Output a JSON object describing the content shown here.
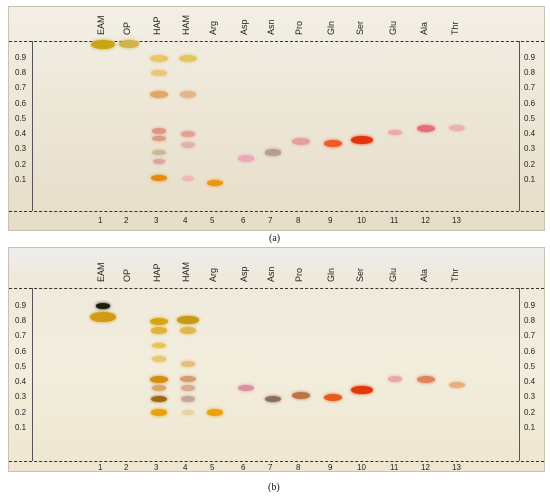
{
  "lanes": [
    {
      "abbr": "EAM",
      "num": "1"
    },
    {
      "abbr": "OP",
      "num": "2"
    },
    {
      "abbr": "HAP",
      "num": "3"
    },
    {
      "abbr": "HAM",
      "num": "4"
    },
    {
      "abbr": "Arg",
      "num": "5"
    },
    {
      "abbr": "Asp",
      "num": "6"
    },
    {
      "abbr": "Asn",
      "num": "7"
    },
    {
      "abbr": "Pro",
      "num": "8"
    },
    {
      "abbr": "Gln",
      "num": "9"
    },
    {
      "abbr": "Ser",
      "num": "10"
    },
    {
      "abbr": "Glu",
      "num": "11"
    },
    {
      "abbr": "Ala",
      "num": "12"
    },
    {
      "abbr": "Thr",
      "num": "13"
    }
  ],
  "rf_ticks": [
    "0.9",
    "0.8",
    "0.7",
    "0.6",
    "0.5",
    "0.4",
    "0.3",
    "0.2",
    "0.1"
  ],
  "captions": {
    "a": "(a)",
    "b": "(b)"
  },
  "plates": {
    "a": [
      {
        "lane": 1,
        "rf": 0.99,
        "color": "#c9a414",
        "size": 1.3
      },
      {
        "lane": 2,
        "rf": 0.99,
        "color": "#d2b24a",
        "size": 1.1
      },
      {
        "lane": 3,
        "rf": 0.9,
        "color": "#e7c768",
        "size": 1.0
      },
      {
        "lane": 3,
        "rf": 0.8,
        "color": "#e8c77a",
        "size": 0.9
      },
      {
        "lane": 3,
        "rf": 0.66,
        "color": "#e0a860",
        "size": 1.0
      },
      {
        "lane": 3,
        "rf": 0.42,
        "color": "#e1957c",
        "size": 0.8
      },
      {
        "lane": 3,
        "rf": 0.37,
        "color": "#e09a80",
        "size": 0.8
      },
      {
        "lane": 3,
        "rf": 0.28,
        "color": "#cdb89a",
        "size": 0.8
      },
      {
        "lane": 3,
        "rf": 0.22,
        "color": "#d8a7a2",
        "size": 0.7
      },
      {
        "lane": 3,
        "rf": 0.11,
        "color": "#e58b0e",
        "size": 0.9
      },
      {
        "lane": 4,
        "rf": 0.9,
        "color": "#e2c660",
        "size": 1.0
      },
      {
        "lane": 4,
        "rf": 0.66,
        "color": "#e5b58a",
        "size": 0.9
      },
      {
        "lane": 4,
        "rf": 0.4,
        "color": "#e4a292",
        "size": 0.8
      },
      {
        "lane": 4,
        "rf": 0.33,
        "color": "#e2b3a8",
        "size": 0.8
      },
      {
        "lane": 4,
        "rf": 0.11,
        "color": "#eeb8b4",
        "size": 0.7
      },
      {
        "lane": 5,
        "rf": 0.08,
        "color": "#ec960d",
        "size": 0.9
      },
      {
        "lane": 6,
        "rf": 0.24,
        "color": "#eca9b8",
        "size": 0.9
      },
      {
        "lane": 7,
        "rf": 0.28,
        "color": "#b59d92",
        "size": 0.9
      },
      {
        "lane": 8,
        "rf": 0.35,
        "color": "#e2a39b",
        "size": 1.0
      },
      {
        "lane": 9,
        "rf": 0.34,
        "color": "#ef5a26",
        "size": 1.0
      },
      {
        "lane": 10,
        "rf": 0.36,
        "color": "#e4340f",
        "size": 1.2
      },
      {
        "lane": 11,
        "rf": 0.41,
        "color": "#efa8a8",
        "size": 0.8
      },
      {
        "lane": 12,
        "rf": 0.44,
        "color": "#e56e78",
        "size": 1.0
      },
      {
        "lane": 13,
        "rf": 0.44,
        "color": "#eab1ad",
        "size": 0.9
      }
    ],
    "b": [
      {
        "lane": 1,
        "rf": 0.9,
        "color": "#1c1c08",
        "size": 0.8
      },
      {
        "lane": 1,
        "rf": 0.83,
        "color": "#d39a15",
        "size": 1.4
      },
      {
        "lane": 3,
        "rf": 0.8,
        "color": "#d8a512",
        "size": 1.0
      },
      {
        "lane": 3,
        "rf": 0.74,
        "color": "#e2b335",
        "size": 0.9
      },
      {
        "lane": 3,
        "rf": 0.64,
        "color": "#e7c552",
        "size": 0.8
      },
      {
        "lane": 3,
        "rf": 0.55,
        "color": "#e7c86c",
        "size": 0.8
      },
      {
        "lane": 3,
        "rf": 0.42,
        "color": "#d48e12",
        "size": 1.0
      },
      {
        "lane": 3,
        "rf": 0.36,
        "color": "#d9a56a",
        "size": 0.8
      },
      {
        "lane": 3,
        "rf": 0.29,
        "color": "#9a6a1a",
        "size": 0.9
      },
      {
        "lane": 3,
        "rf": 0.2,
        "color": "#e9a20d",
        "size": 0.9
      },
      {
        "lane": 4,
        "rf": 0.81,
        "color": "#c79a14",
        "size": 1.2
      },
      {
        "lane": 4,
        "rf": 0.74,
        "color": "#e2b84a",
        "size": 0.9
      },
      {
        "lane": 4,
        "rf": 0.52,
        "color": "#e4bf7e",
        "size": 0.8
      },
      {
        "lane": 4,
        "rf": 0.42,
        "color": "#d89b6e",
        "size": 0.9
      },
      {
        "lane": 4,
        "rf": 0.36,
        "color": "#dbaa90",
        "size": 0.8
      },
      {
        "lane": 4,
        "rf": 0.29,
        "color": "#c4a79a",
        "size": 0.8
      },
      {
        "lane": 4,
        "rf": 0.2,
        "color": "#ead2a6",
        "size": 0.7
      },
      {
        "lane": 5,
        "rf": 0.2,
        "color": "#eca20d",
        "size": 0.9
      },
      {
        "lane": 6,
        "rf": 0.36,
        "color": "#df8fa2",
        "size": 0.9
      },
      {
        "lane": 7,
        "rf": 0.29,
        "color": "#8a6f58",
        "size": 0.9
      },
      {
        "lane": 8,
        "rf": 0.31,
        "color": "#b97546",
        "size": 1.0
      },
      {
        "lane": 9,
        "rf": 0.3,
        "color": "#e65a1a",
        "size": 1.0
      },
      {
        "lane": 10,
        "rf": 0.35,
        "color": "#e0380b",
        "size": 1.2
      },
      {
        "lane": 11,
        "rf": 0.42,
        "color": "#eca7a6",
        "size": 0.8
      },
      {
        "lane": 12,
        "rf": 0.42,
        "color": "#e0825c",
        "size": 1.0
      },
      {
        "lane": 13,
        "rf": 0.38,
        "color": "#e9b07e",
        "size": 0.9
      }
    ]
  }
}
